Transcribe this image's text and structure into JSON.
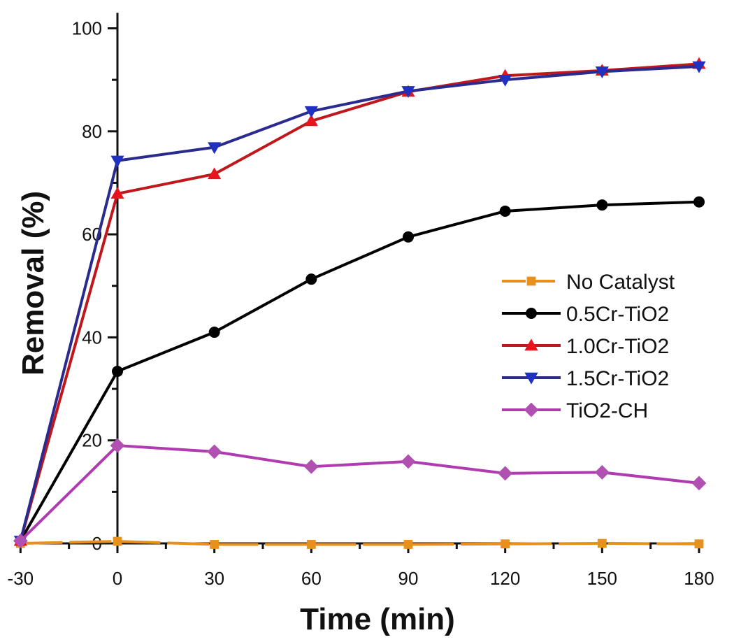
{
  "chart_data": {
    "type": "line",
    "title": "",
    "xlabel": "Time (min)",
    "ylabel": "Removal (%)",
    "xlim": [
      -30,
      183
    ],
    "ylim": [
      0,
      100
    ],
    "x_ticks": [
      -30,
      0,
      30,
      60,
      90,
      120,
      150,
      180
    ],
    "y_ticks": [
      0,
      20,
      40,
      60,
      80,
      100
    ],
    "grid": false,
    "legend_position": "center-right",
    "x": [
      -30,
      0,
      30,
      60,
      90,
      120,
      150,
      180
    ],
    "series": [
      {
        "name": "No Catalyst",
        "color": "#e8901c",
        "marker": "square",
        "values": [
          0,
          0.4,
          -0.2,
          -0.2,
          -0.2,
          -0.1,
          0,
          -0.1
        ]
      },
      {
        "name": "0.5Cr-TiO2",
        "color": "#000000",
        "marker": "circle",
        "values": [
          0.5,
          33.4,
          41,
          51.3,
          59.5,
          64.5,
          65.7,
          66.3
        ]
      },
      {
        "name": "1.0Cr-TiO2",
        "color": "#c0171c",
        "marker_color": "#e8141c",
        "marker": "triangle-up",
        "values": [
          0.5,
          67.9,
          71.7,
          82,
          87.7,
          90.8,
          91.8,
          93.1
        ]
      },
      {
        "name": "1.5Cr-TiO2",
        "color": "#2a2a8f",
        "marker_color": "#2030c0",
        "marker": "triangle-down",
        "values": [
          0.5,
          74.3,
          76.9,
          83.9,
          87.8,
          90,
          91.6,
          92.6
        ]
      },
      {
        "name": "TiO2-CH",
        "color": "#b03ab0",
        "marker_color": "#b050b0",
        "marker": "diamond",
        "values": [
          0.5,
          19,
          17.8,
          14.9,
          15.9,
          13.6,
          13.8,
          11.7
        ]
      }
    ]
  }
}
